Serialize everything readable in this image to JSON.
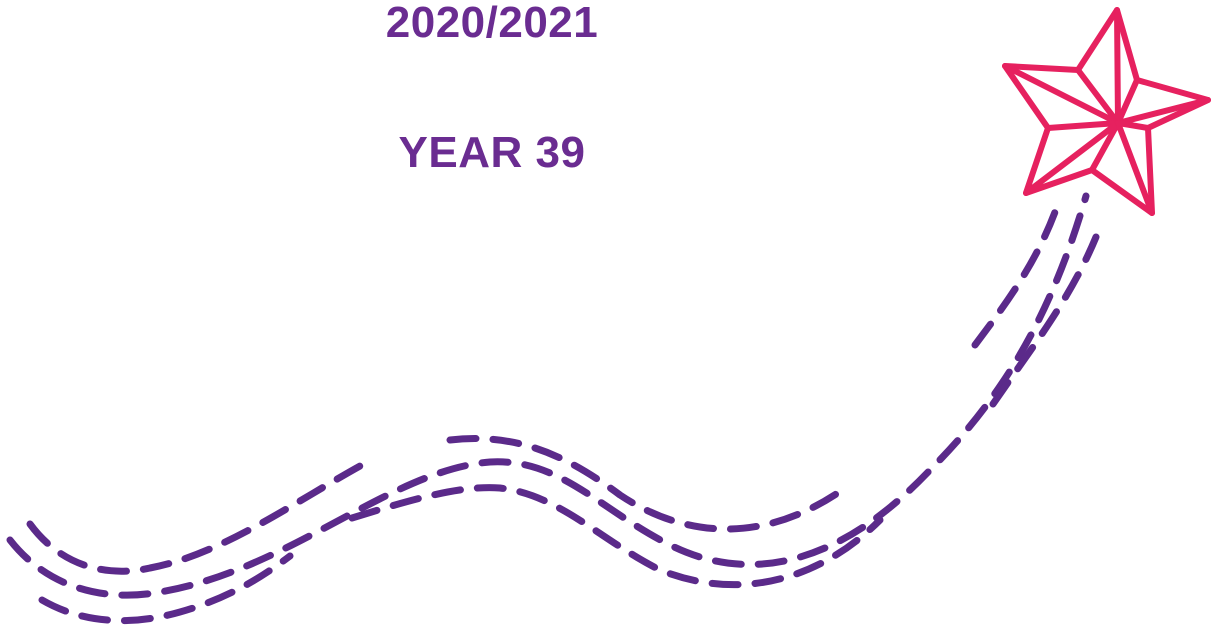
{
  "header": {
    "year_range": "2020/2021",
    "year_label": "YEAR 39"
  },
  "graphic": {
    "trail_icon": "dashed-trail",
    "star_icon": "shooting-star"
  },
  "colors": {
    "text": "#6a2c91",
    "trail": "#5b2a8a",
    "star": "#e6215f"
  }
}
